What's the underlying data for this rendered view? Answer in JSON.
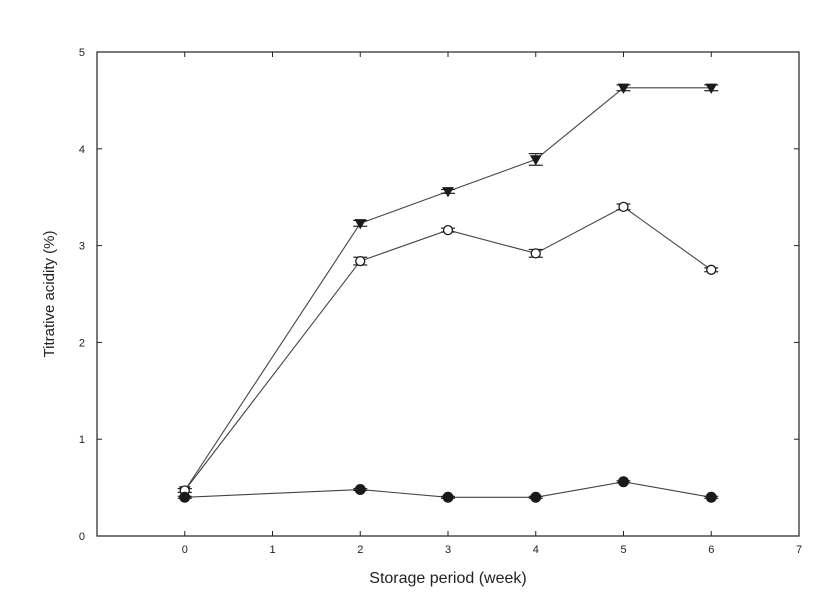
{
  "chart_data": {
    "type": "line",
    "title": "",
    "xlabel": "Storage period (week)",
    "ylabel": "Titrative acidity (%)",
    "xlim": [
      -1,
      7
    ],
    "ylim": [
      0,
      5
    ],
    "xticks": [
      "0",
      "1",
      "2",
      "3",
      "4",
      "5",
      "6",
      "7"
    ],
    "yticks": [
      "0",
      "1",
      "2",
      "3",
      "4",
      "5"
    ],
    "grid": false,
    "legend": "none",
    "series": [
      {
        "marker": "filled-triangle-down",
        "color": "#1a1a1a",
        "x": [
          0,
          2,
          3,
          4,
          5,
          6
        ],
        "y": [
          0.47,
          3.23,
          3.56,
          3.89,
          4.63,
          4.63
        ],
        "err": [
          0.02,
          0.03,
          0.02,
          0.06,
          0.03,
          0.03
        ]
      },
      {
        "marker": "open-circle",
        "color": "#1a1a1a",
        "x": [
          0,
          2,
          3,
          4,
          5,
          6
        ],
        "y": [
          0.47,
          2.84,
          3.16,
          2.92,
          3.4,
          2.75
        ],
        "err": [
          0.02,
          0.04,
          0.02,
          0.04,
          0.03,
          0.02
        ]
      },
      {
        "marker": "filled-circle",
        "color": "#1a1a1a",
        "x": [
          0,
          2,
          3,
          4,
          5,
          6
        ],
        "y": [
          0.4,
          0.48,
          0.4,
          0.4,
          0.56,
          0.4
        ],
        "err": [
          0.01,
          0.01,
          0.01,
          0.01,
          0.01,
          0.01
        ]
      }
    ]
  }
}
